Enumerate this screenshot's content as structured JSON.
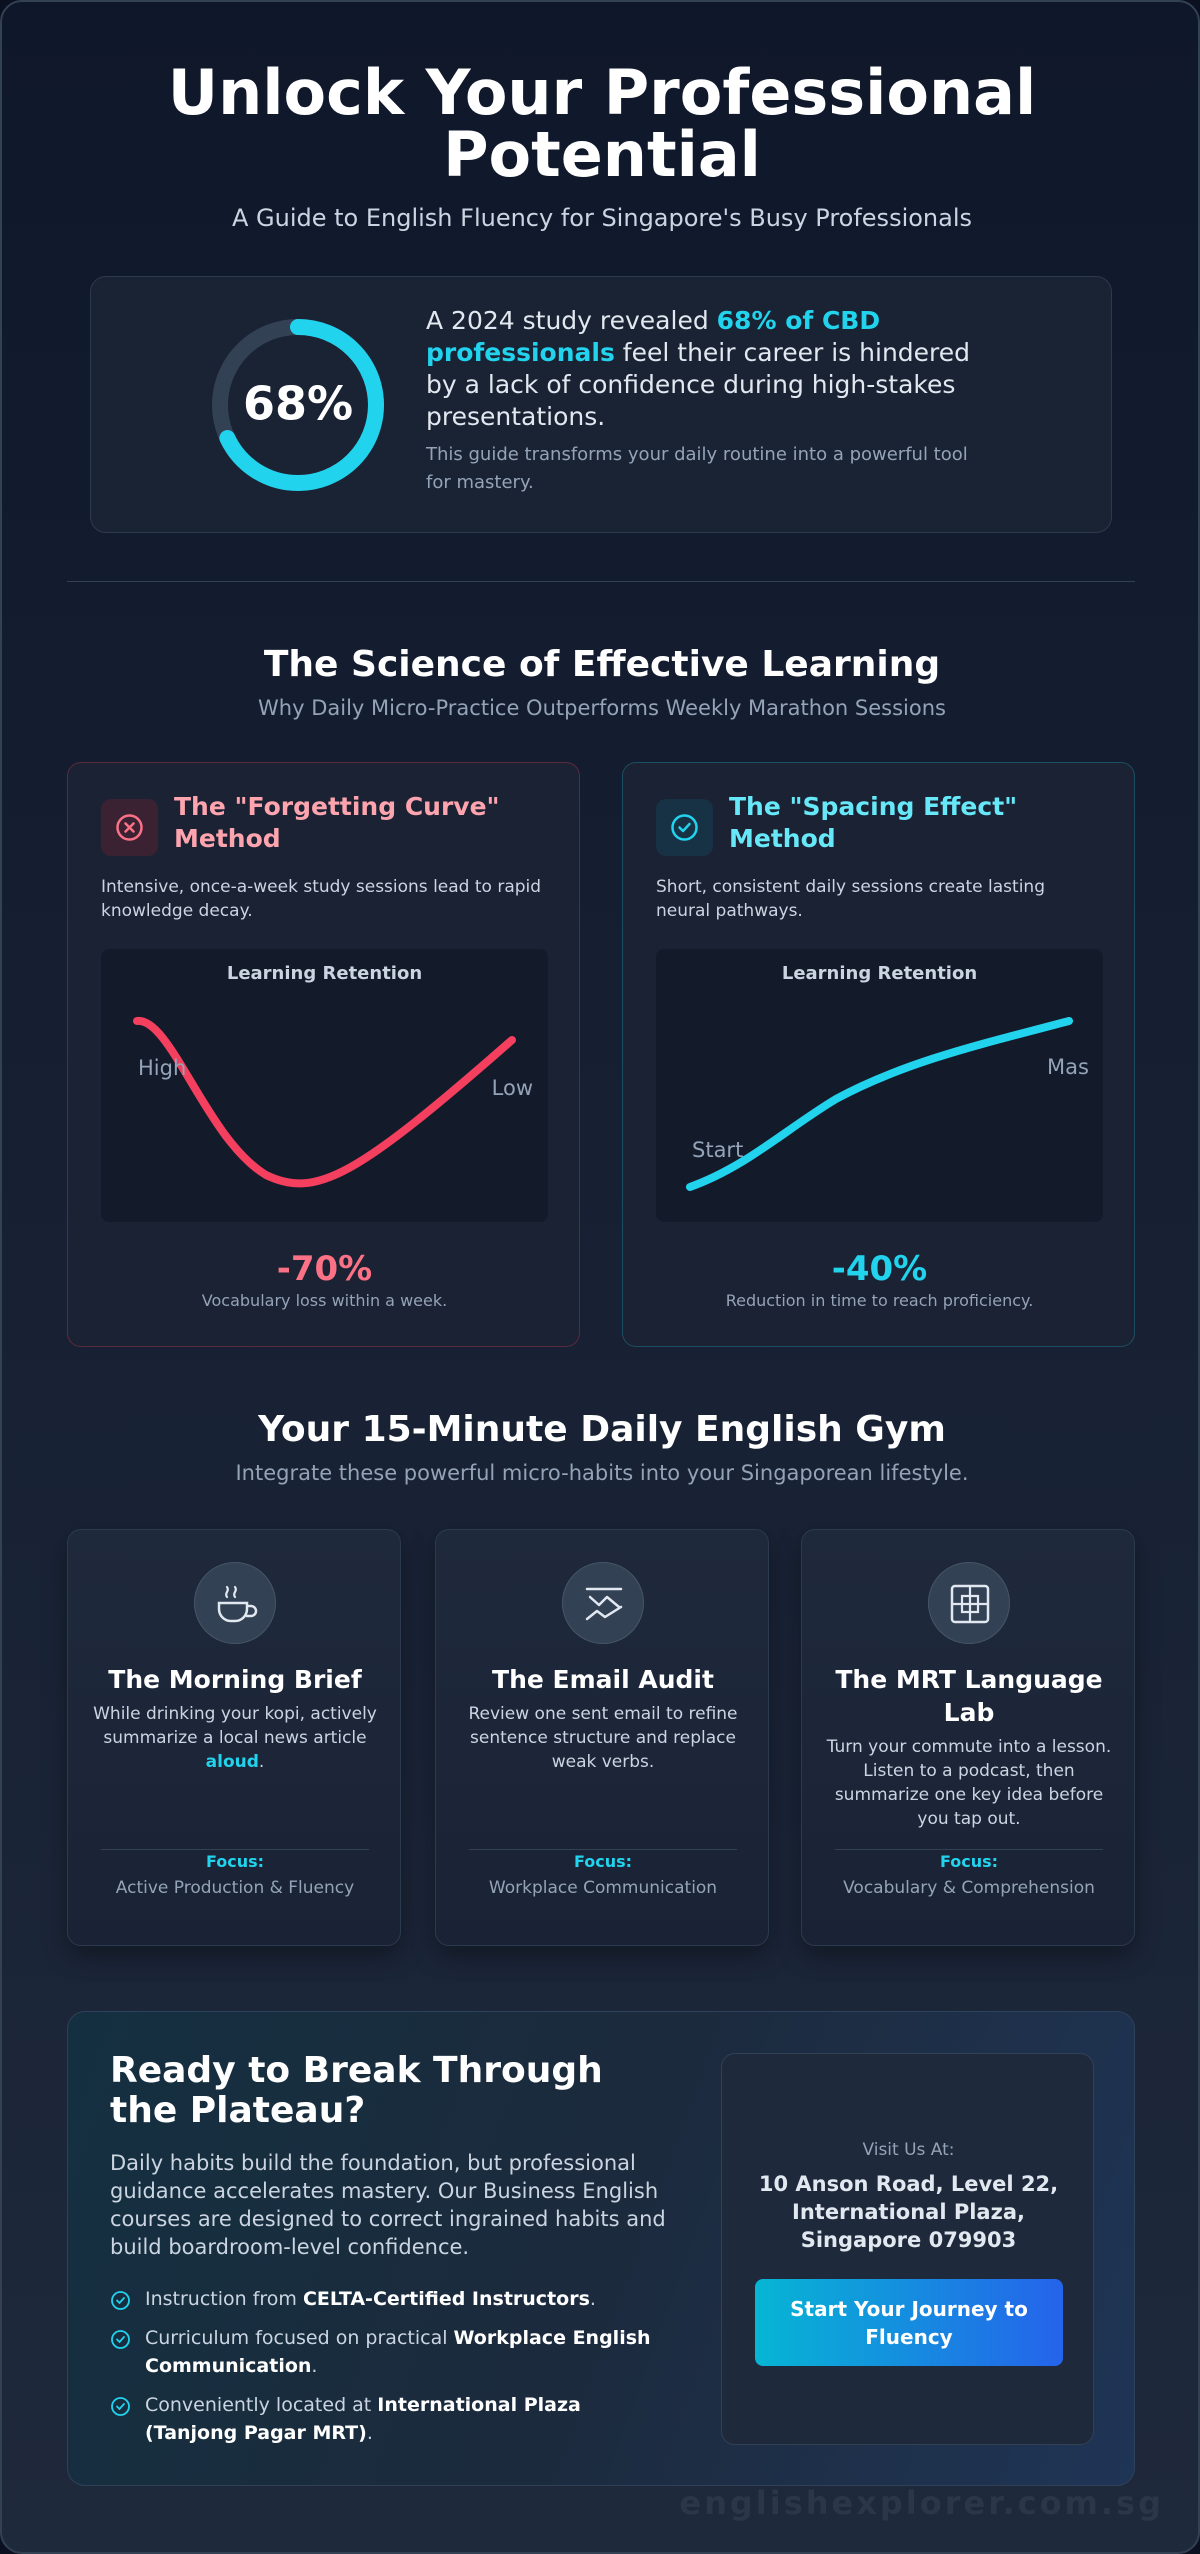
{
  "header": {
    "title": "Unlock Your Professional Potential",
    "subtitle": "A Guide to English Fluency for Singapore's Busy Professionals"
  },
  "stat": {
    "value": 68,
    "label": "68%",
    "text": [
      "A 2024 study revealed ",
      "68% of CBD professionals",
      " feel their career is hindered by a lack of confidence during high-stakes presentations."
    ],
    "note": "This guide transforms your daily routine into a powerful tool for mastery."
  },
  "science": {
    "title": "The Science of Effective Learning",
    "subtitle": "Why Daily Micro-Practice Outperforms Weekly Marathon Sessions",
    "cards": [
      {
        "title": "The \"Forgetting Curve\" Method",
        "description": "Intensive, once-a-week study sessions lead to rapid knowledge decay.",
        "chart_title": "Learning Retention",
        "labels": [
          "High",
          "Low"
        ],
        "figure": "-70%",
        "caption": "Vocabulary loss within a week."
      },
      {
        "title": "The \"Spacing Effect\" Method",
        "description": "Short, consistent daily sessions create lasting neural pathways.",
        "chart_title": "Learning Retention",
        "labels": [
          "Start",
          "Mas"
        ],
        "figure": "-40%",
        "caption": "Reduction in time to reach proficiency."
      }
    ]
  },
  "gym": {
    "title": "Your 15-Minute Daily English Gym",
    "subtitle": "Integrate these powerful micro-habits into your Singaporean lifestyle.",
    "cards": [
      {
        "title": "The Morning Brief",
        "description": [
          "While drinking your kopi, actively summarize a local news article ",
          "aloud",
          "."
        ],
        "focus_label": "Focus:",
        "focus": "Active Production & Fluency"
      },
      {
        "title": "The Email Audit",
        "description": [
          "Review one sent email to refine sentence structure and replace weak verbs."
        ],
        "focus_label": "Focus:",
        "focus": "Workplace Communication"
      },
      {
        "title": "The MRT Language Lab",
        "description": [
          "Turn your commute into a lesson. Listen to a podcast, then summarize one key idea before you tap out."
        ],
        "focus_label": "Focus:",
        "focus": "Vocabulary & Comprehension"
      }
    ]
  },
  "cta": {
    "title": "Ready to Break Through the Plateau?",
    "body": "Daily habits build the foundation, but professional guidance accelerates mastery. Our Business English courses are designed to correct ingrained habits and build boardroom-level confidence.",
    "bullets": [
      [
        "Instruction from ",
        "CELTA-Certified Instructors",
        "."
      ],
      [
        "Curriculum focused on practical ",
        "Workplace English Communication",
        "."
      ],
      [
        "Conveniently located at ",
        "International Plaza (Tanjong Pagar MRT)",
        "."
      ]
    ],
    "visit_label": "Visit Us At:",
    "address": "10 Anson Road, Level 22, International Plaza, Singapore 079903",
    "button": "Start Your Journey to Fluency"
  },
  "footer": "englishexplorer.com.sg"
}
